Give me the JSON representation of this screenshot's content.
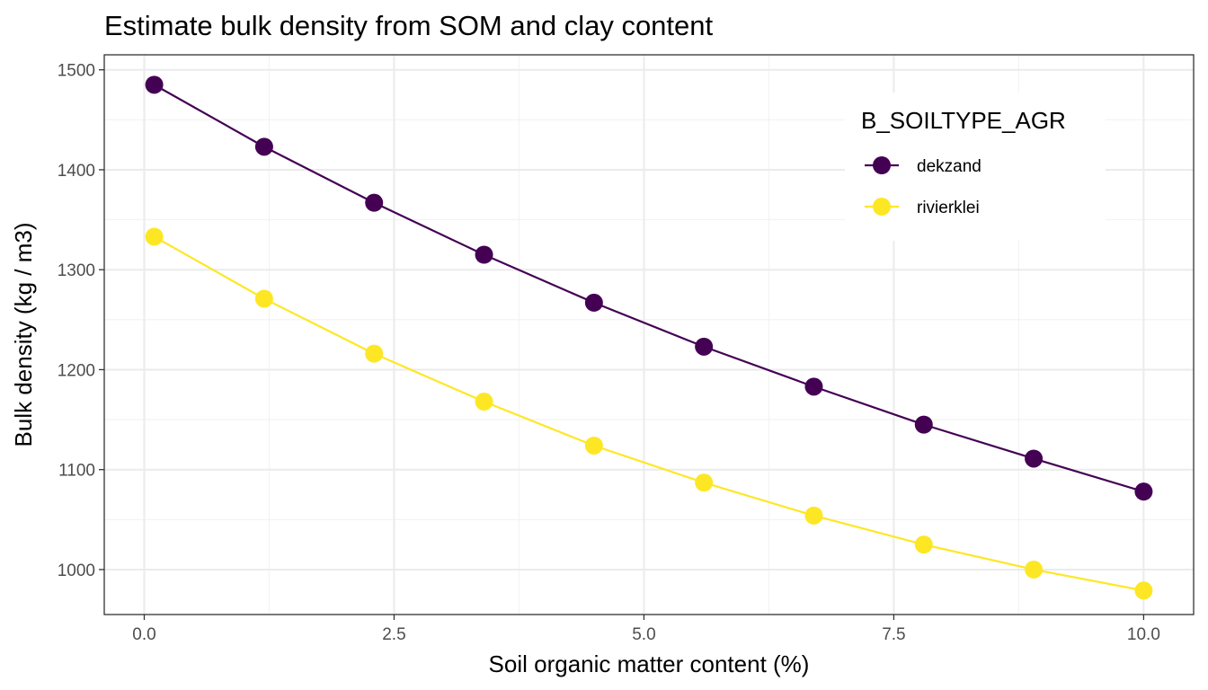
{
  "chart_data": {
    "type": "line",
    "title": "Estimate bulk density from SOM and clay content",
    "xlabel": "Soil organic matter content (%)",
    "ylabel": "Bulk density (kg / m3)",
    "xlim": [
      -0.4,
      10.5
    ],
    "ylim": [
      955,
      1515
    ],
    "x_ticks": [
      0.0,
      2.5,
      5.0,
      7.5,
      10.0
    ],
    "x_tick_labels": [
      "0.0",
      "2.5",
      "5.0",
      "7.5",
      "10.0"
    ],
    "y_ticks": [
      1000,
      1100,
      1200,
      1300,
      1400,
      1500
    ],
    "y_tick_labels": [
      "1000",
      "1100",
      "1200",
      "1300",
      "1400",
      "1500"
    ],
    "grid": true,
    "legend": {
      "title": "B_SOILTYPE_AGR",
      "position": "top-right-inside"
    },
    "x": [
      0.1,
      1.2,
      2.3,
      3.4,
      4.5,
      5.6,
      6.7,
      7.8,
      8.9,
      10.0
    ],
    "series": [
      {
        "name": "dekzand",
        "color": "#440154",
        "values": [
          1485,
          1423,
          1367,
          1315,
          1267,
          1223,
          1183,
          1145,
          1111,
          1078
        ]
      },
      {
        "name": "rivierklei",
        "color": "#fde725",
        "values": [
          1333,
          1271,
          1216,
          1168,
          1124,
          1087,
          1054,
          1025,
          1000,
          979
        ]
      }
    ]
  }
}
